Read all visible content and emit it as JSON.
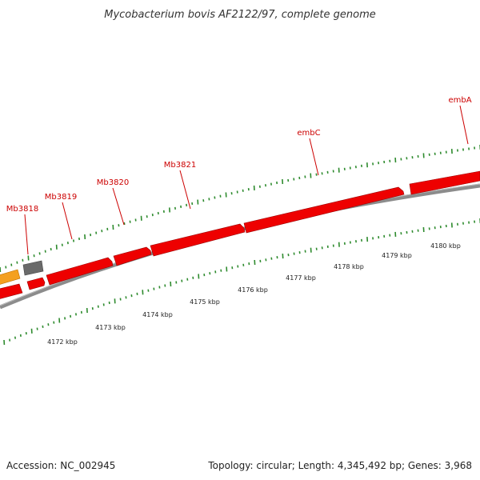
{
  "title": "Mycobacterium bovis AF2122/97, complete genome",
  "footer": {
    "accession": "Accession: NC_002945",
    "summary": "Topology: circular; Length: 4,345,492 bp; Genes: 3,968"
  },
  "colors": {
    "gene": "#ee0000",
    "gene_alt": "#f4a020",
    "gene_gray": "#666666",
    "backbone": "#808080",
    "tick": "#2e8b2e",
    "label": "#cc0000"
  },
  "genes": [
    "Mb3818",
    "Mb3819",
    "Mb3820",
    "Mb3821",
    "embC",
    "embA"
  ],
  "scale_labels": [
    "4172 kbp",
    "4173 kbp",
    "4174 kbp",
    "4175 kbp",
    "4176 kbp",
    "4177 kbp",
    "4178 kbp",
    "4179 kbp",
    "4180 kbp"
  ]
}
